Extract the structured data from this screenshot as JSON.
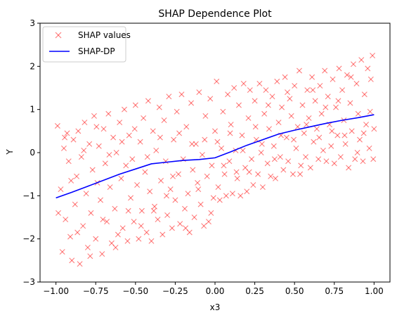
{
  "chart_data": {
    "type": "scatter",
    "title": "SHAP Dependence Plot",
    "xlabel": "x3",
    "ylabel": "Y",
    "xlim": [
      -1.1,
      1.1
    ],
    "ylim": [
      -3,
      3
    ],
    "xticks": [
      -1.0,
      -0.75,
      -0.5,
      -0.25,
      0.0,
      0.25,
      0.5,
      0.75,
      1.0
    ],
    "xtick_labels": [
      "−1.00",
      "−0.75",
      "−0.50",
      "−0.25",
      "0.00",
      "0.25",
      "0.50",
      "0.75",
      "1.00"
    ],
    "yticks": [
      -3,
      -2,
      -1,
      0,
      1,
      2,
      3
    ],
    "ytick_labels": [
      "−3",
      "−2",
      "−1",
      "0",
      "1",
      "2",
      "3"
    ],
    "grid": false,
    "legend_position": "top-left",
    "series": [
      {
        "name": "SHAP values",
        "kind": "scatter",
        "marker": "x",
        "color": "#ff0000",
        "alpha": 0.5,
        "points": [
          [
            -0.99,
            0.62
          ],
          [
            -0.97,
            -0.85
          ],
          [
            -0.96,
            -2.3
          ],
          [
            -0.95,
            0.1
          ],
          [
            -0.94,
            -1.55
          ],
          [
            -0.93,
            0.45
          ],
          [
            -0.92,
            -0.2
          ],
          [
            -0.91,
            -1.95
          ],
          [
            -0.9,
            -2.5
          ],
          [
            -0.89,
            0.3
          ],
          [
            -0.88,
            -1.2
          ],
          [
            -0.87,
            -0.55
          ],
          [
            -0.86,
            0.5
          ],
          [
            -0.85,
            -2.58
          ],
          [
            -0.84,
            -0.1
          ],
          [
            -0.83,
            -1.7
          ],
          [
            -0.82,
            0.7
          ],
          [
            -0.81,
            -0.95
          ],
          [
            -0.8,
            -2.2
          ],
          [
            -0.79,
            0.2
          ],
          [
            -0.78,
            -1.4
          ],
          [
            -0.77,
            -0.4
          ],
          [
            -0.76,
            0.85
          ],
          [
            -0.75,
            -2.0
          ],
          [
            -0.74,
            -0.7
          ],
          [
            -0.73,
            0.15
          ],
          [
            -0.72,
            -1.1
          ],
          [
            -0.71,
            -2.35
          ],
          [
            -0.7,
            0.55
          ],
          [
            -0.69,
            -0.25
          ],
          [
            -0.68,
            -1.6
          ],
          [
            -0.67,
            0.9
          ],
          [
            -0.66,
            -0.8
          ],
          [
            -0.65,
            -2.1
          ],
          [
            -0.64,
            0.35
          ],
          [
            -0.63,
            -1.3
          ],
          [
            -0.62,
            0.0
          ],
          [
            -0.61,
            -1.9
          ],
          [
            -0.6,
            0.7
          ],
          [
            -0.59,
            -0.6
          ],
          [
            -0.58,
            -1.75
          ],
          [
            -0.57,
            1.0
          ],
          [
            -0.56,
            -0.3
          ],
          [
            -0.55,
            -2.05
          ],
          [
            -0.54,
            0.4
          ],
          [
            -0.53,
            -1.05
          ],
          [
            -0.52,
            -0.15
          ],
          [
            -0.51,
            -1.6
          ],
          [
            -0.5,
            1.1
          ],
          [
            -0.49,
            -0.75
          ],
          [
            -0.48,
            -2.0
          ],
          [
            -0.47,
            0.25
          ],
          [
            -0.46,
            -1.35
          ],
          [
            -0.45,
            0.8
          ],
          [
            -0.44,
            -0.45
          ],
          [
            -0.43,
            -1.85
          ],
          [
            -0.42,
            1.2
          ],
          [
            -0.41,
            -0.9
          ],
          [
            -0.4,
            -2.05
          ],
          [
            -0.39,
            0.5
          ],
          [
            -0.38,
            -1.25
          ],
          [
            -0.37,
            0.05
          ],
          [
            -0.36,
            -1.55
          ],
          [
            -0.35,
            1.05
          ],
          [
            -0.34,
            -0.65
          ],
          [
            -0.33,
            -1.9
          ],
          [
            -0.32,
            0.75
          ],
          [
            -0.31,
            -0.2
          ],
          [
            -0.3,
            -1.45
          ],
          [
            -0.29,
            1.3
          ],
          [
            -0.28,
            -0.85
          ],
          [
            -0.27,
            -1.75
          ],
          [
            -0.26,
            0.3
          ],
          [
            -0.25,
            -1.1
          ],
          [
            -0.24,
            0.95
          ],
          [
            -0.23,
            -0.5
          ],
          [
            -0.22,
            -1.65
          ],
          [
            -0.21,
            1.35
          ],
          [
            -0.2,
            -0.15
          ],
          [
            -0.19,
            -1.3
          ],
          [
            -0.18,
            0.6
          ],
          [
            -0.17,
            -0.95
          ],
          [
            -0.16,
            -1.85
          ],
          [
            -0.15,
            1.15
          ],
          [
            -0.14,
            -0.4
          ],
          [
            -0.13,
            -1.5
          ],
          [
            -0.12,
            0.2
          ],
          [
            -0.11,
            -0.7
          ],
          [
            -0.1,
            1.4
          ],
          [
            -0.09,
            -1.2
          ],
          [
            -0.08,
            -0.05
          ],
          [
            -0.07,
            -1.7
          ],
          [
            -0.06,
            0.85
          ],
          [
            -0.05,
            -0.55
          ],
          [
            -0.04,
            -1.6
          ],
          [
            -0.03,
            1.25
          ],
          [
            -0.02,
            -0.3
          ],
          [
            -0.01,
            -1.05
          ],
          [
            0.0,
            0.5
          ],
          [
            0.01,
            1.65
          ],
          [
            0.02,
            -0.8
          ],
          [
            0.03,
            -1.1
          ],
          [
            0.04,
            0.1
          ],
          [
            0.05,
            0.95
          ],
          [
            0.06,
            -0.5
          ],
          [
            0.07,
            -1.0
          ],
          [
            0.08,
            1.35
          ],
          [
            0.09,
            -0.2
          ],
          [
            0.1,
            0.65
          ],
          [
            0.11,
            -0.95
          ],
          [
            0.12,
            1.5
          ],
          [
            0.13,
            0.05
          ],
          [
            0.14,
            -0.6
          ],
          [
            0.15,
            1.1
          ],
          [
            0.16,
            -1.0
          ],
          [
            0.17,
            0.4
          ],
          [
            0.18,
            1.6
          ],
          [
            0.19,
            -0.35
          ],
          [
            0.2,
            -0.9
          ],
          [
            0.21,
            0.8
          ],
          [
            0.22,
            1.45
          ],
          [
            0.23,
            -0.15
          ],
          [
            0.24,
            -0.75
          ],
          [
            0.25,
            1.2
          ],
          [
            0.26,
            0.3
          ],
          [
            0.27,
            -0.5
          ],
          [
            0.28,
            1.6
          ],
          [
            0.29,
            0.0
          ],
          [
            0.3,
            -0.8
          ],
          [
            0.31,
            0.9
          ],
          [
            0.32,
            1.45
          ],
          [
            0.33,
            -0.25
          ],
          [
            0.34,
            0.55
          ],
          [
            0.35,
            -0.55
          ],
          [
            0.36,
            1.3
          ],
          [
            0.37,
            0.15
          ],
          [
            0.38,
            -0.6
          ],
          [
            0.39,
            1.65
          ],
          [
            0.4,
            0.7
          ],
          [
            0.41,
            -0.1
          ],
          [
            0.42,
            1.05
          ],
          [
            0.43,
            -0.4
          ],
          [
            0.44,
            1.75
          ],
          [
            0.45,
            0.35
          ],
          [
            0.46,
            -0.2
          ],
          [
            0.47,
            1.25
          ],
          [
            0.48,
            0.85
          ],
          [
            0.49,
            -0.5
          ],
          [
            0.5,
            1.55
          ],
          [
            0.51,
            0.1
          ],
          [
            0.52,
            0.6
          ],
          [
            0.53,
            1.9
          ],
          [
            0.54,
            -0.3
          ],
          [
            0.55,
            1.1
          ],
          [
            0.56,
            0.45
          ],
          [
            0.57,
            -0.1
          ],
          [
            0.58,
            1.45
          ],
          [
            0.59,
            0.8
          ],
          [
            0.6,
            -0.35
          ],
          [
            0.61,
            1.75
          ],
          [
            0.62,
            0.25
          ],
          [
            0.63,
            1.2
          ],
          [
            0.64,
            0.55
          ],
          [
            0.65,
            -0.15
          ],
          [
            0.66,
            1.55
          ],
          [
            0.67,
            0.9
          ],
          [
            0.68,
            0.05
          ],
          [
            0.69,
            1.9
          ],
          [
            0.7,
            -0.2
          ],
          [
            0.71,
            1.3
          ],
          [
            0.72,
            0.65
          ],
          [
            0.73,
            0.15
          ],
          [
            0.74,
            1.7
          ],
          [
            0.75,
            -0.25
          ],
          [
            0.76,
            1.05
          ],
          [
            0.77,
            0.4
          ],
          [
            0.78,
            1.95
          ],
          [
            0.79,
            -0.1
          ],
          [
            0.8,
            1.45
          ],
          [
            0.81,
            0.75
          ],
          [
            0.82,
            0.2
          ],
          [
            0.83,
            1.8
          ],
          [
            0.84,
            -0.35
          ],
          [
            0.85,
            1.15
          ],
          [
            0.86,
            0.5
          ],
          [
            0.87,
            2.05
          ],
          [
            0.88,
            -0.15
          ],
          [
            0.89,
            1.6
          ],
          [
            0.9,
            0.9
          ],
          [
            0.91,
            0.3
          ],
          [
            0.92,
            2.15
          ],
          [
            0.93,
            -0.2
          ],
          [
            0.94,
            1.35
          ],
          [
            0.95,
            0.65
          ],
          [
            0.96,
            1.95
          ],
          [
            0.97,
            0.1
          ],
          [
            0.98,
            1.7
          ],
          [
            0.99,
            2.25
          ],
          [
            1.0,
            0.55
          ],
          [
            0.995,
            -0.15
          ],
          [
            -0.985,
            -1.4
          ],
          [
            -0.945,
            0.35
          ],
          [
            -0.905,
            -0.65
          ],
          [
            -0.865,
            -1.85
          ],
          [
            -0.825,
            0.05
          ],
          [
            -0.785,
            -2.4
          ],
          [
            -0.745,
            0.6
          ],
          [
            -0.705,
            -1.55
          ],
          [
            -0.665,
            -0.05
          ],
          [
            -0.625,
            -2.2
          ],
          [
            -0.585,
            0.25
          ],
          [
            -0.545,
            -1.35
          ],
          [
            -0.505,
            0.55
          ],
          [
            -0.465,
            -1.7
          ],
          [
            -0.425,
            -0.1
          ],
          [
            -0.385,
            -1.35
          ],
          [
            -0.345,
            0.35
          ],
          [
            -0.305,
            -1.0
          ],
          [
            -0.265,
            -0.55
          ],
          [
            -0.225,
            0.45
          ],
          [
            -0.185,
            -1.75
          ],
          [
            -0.145,
            0.2
          ],
          [
            -0.105,
            -0.85
          ],
          [
            -0.065,
            0.3
          ],
          [
            -0.025,
            -1.4
          ],
          [
            0.015,
            0.25
          ],
          [
            0.055,
            -0.3
          ],
          [
            0.095,
            0.45
          ],
          [
            0.135,
            -0.45
          ],
          [
            0.175,
            0.05
          ],
          [
            0.215,
            -0.45
          ],
          [
            0.255,
            0.6
          ],
          [
            0.295,
            0.2
          ],
          [
            0.335,
            1.1
          ],
          [
            0.375,
            -0.15
          ],
          [
            0.415,
            0.4
          ],
          [
            0.455,
            1.4
          ],
          [
            0.495,
            0.3
          ],
          [
            0.535,
            -0.5
          ],
          [
            0.575,
            0.65
          ],
          [
            0.615,
            1.45
          ],
          [
            0.655,
            0.35
          ],
          [
            0.695,
            1.05
          ],
          [
            0.735,
            0.5
          ],
          [
            0.775,
            1.2
          ],
          [
            0.815,
            0.4
          ],
          [
            0.855,
            1.75
          ],
          [
            0.895,
            0.0
          ],
          [
            0.935,
            0.45
          ],
          [
            0.975,
            0.95
          ]
        ]
      },
      {
        "name": "SHAP-DP",
        "kind": "line",
        "color": "#0000ff",
        "points": [
          [
            -1.0,
            -1.05
          ],
          [
            -0.9,
            -0.92
          ],
          [
            -0.8,
            -0.78
          ],
          [
            -0.7,
            -0.64
          ],
          [
            -0.6,
            -0.5
          ],
          [
            -0.5,
            -0.38
          ],
          [
            -0.4,
            -0.26
          ],
          [
            -0.3,
            -0.22
          ],
          [
            -0.2,
            -0.18
          ],
          [
            -0.1,
            -0.16
          ],
          [
            0.0,
            -0.12
          ],
          [
            0.1,
            0.02
          ],
          [
            0.2,
            0.17
          ],
          [
            0.3,
            0.3
          ],
          [
            0.4,
            0.43
          ],
          [
            0.5,
            0.52
          ],
          [
            0.6,
            0.6
          ],
          [
            0.7,
            0.68
          ],
          [
            0.8,
            0.75
          ],
          [
            0.9,
            0.81
          ],
          [
            1.0,
            0.88
          ]
        ]
      }
    ]
  }
}
